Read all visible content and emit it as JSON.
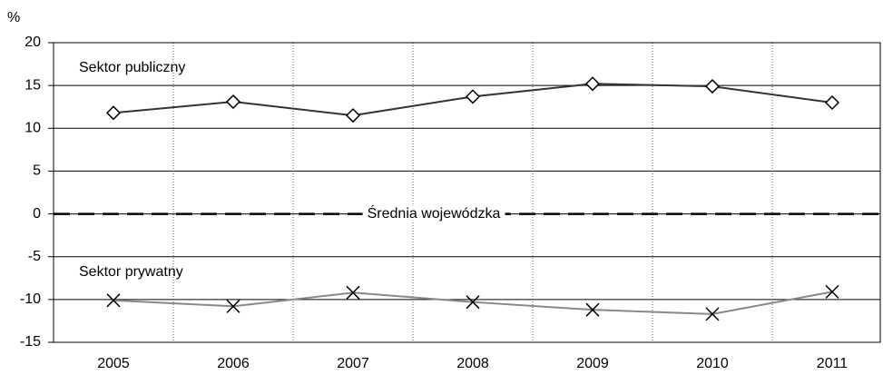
{
  "chart_data": {
    "type": "line",
    "y_label": "%",
    "categories": [
      "2005",
      "2006",
      "2007",
      "2008",
      "2009",
      "2010",
      "2011"
    ],
    "series": [
      {
        "name": "Sektor publiczny",
        "color": "#333333",
        "marker": "diamond",
        "values": [
          11.8,
          13.1,
          11.5,
          13.7,
          15.2,
          14.9,
          13.0
        ]
      },
      {
        "name": "Sektor prywatny",
        "color": "#888888",
        "marker": "x",
        "values": [
          -10.1,
          -10.8,
          -9.2,
          -10.3,
          -11.2,
          -11.7,
          -9.1
        ]
      }
    ],
    "reference_label": "Średnia wojewódzka",
    "ylim": [
      -15,
      20
    ],
    "yticks": [
      -15,
      -10,
      -5,
      0,
      5,
      10,
      15,
      20
    ],
    "grid": true
  }
}
